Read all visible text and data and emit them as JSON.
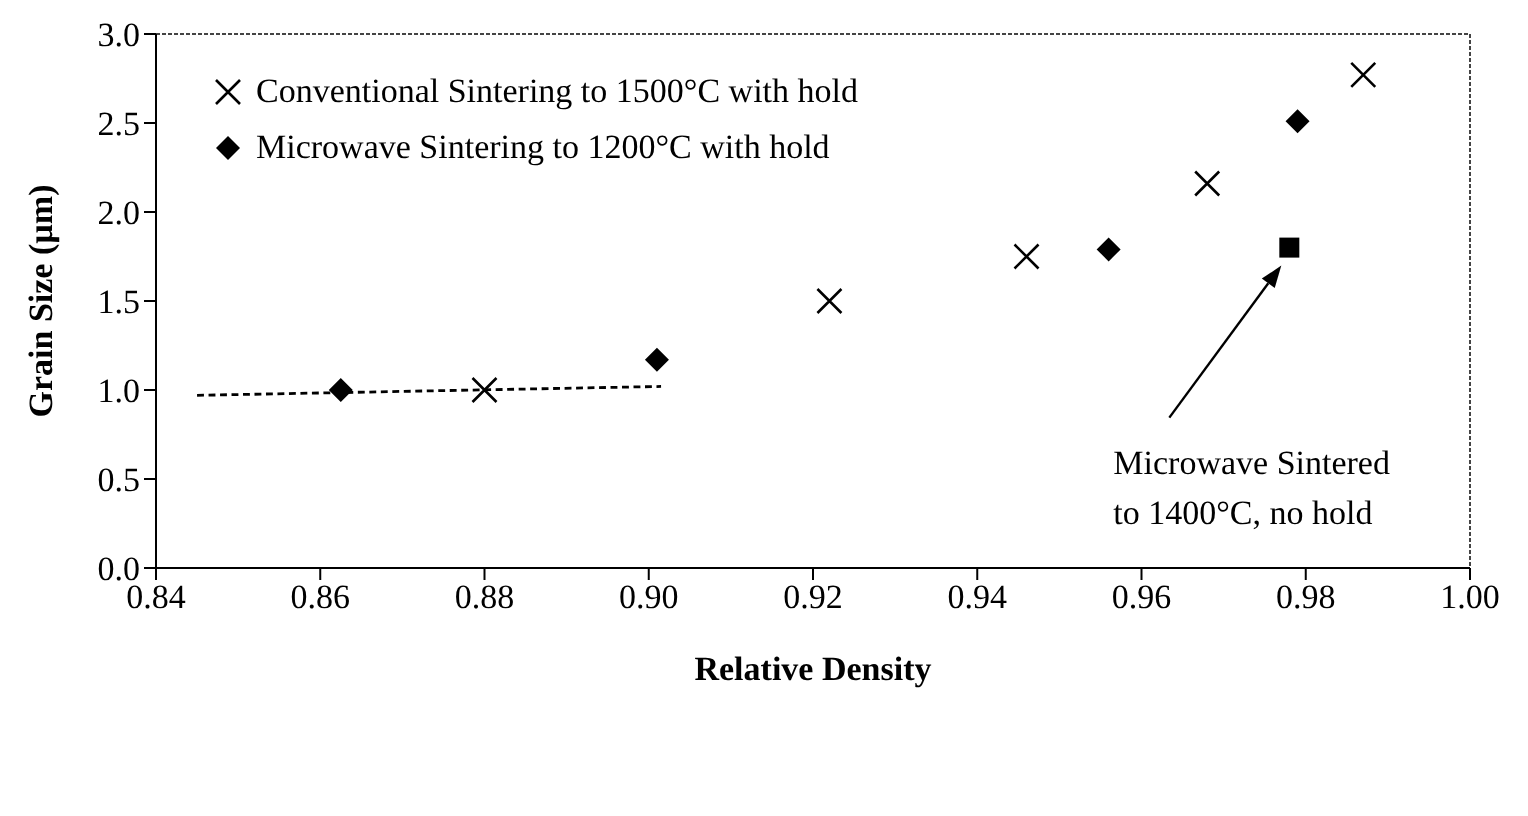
{
  "chart_data": {
    "type": "scatter",
    "xlabel": "Relative Density",
    "ylabel": "Grain Size (µm)",
    "xlim": [
      0.84,
      1.0
    ],
    "xticks": [
      0.84,
      0.86,
      0.88,
      {
        "value": 0.9,
        "label": "0.90"
      },
      0.92,
      0.94,
      0.96,
      0.98,
      {
        "value": 1.0,
        "label": "1.00"
      }
    ],
    "ylim": [
      0,
      3
    ],
    "yticks": [
      {
        "value": 0,
        "label": "0.0"
      },
      0.5,
      {
        "value": 1,
        "label": "1.0"
      },
      1.5,
      {
        "value": 2,
        "label": "2.0"
      },
      2.5,
      {
        "value": 3,
        "label": "3.0"
      }
    ],
    "legend": "top left",
    "series": [
      {
        "name": "Conventional Sintering to 1500°C with hold",
        "color": "#000000",
        "marker": "cross",
        "x": [
          0.88,
          0.922,
          0.946,
          0.968,
          0.987
        ],
        "values": [
          1.0,
          1.5,
          1.75,
          2.16,
          2.77
        ]
      },
      {
        "name": "Microwave Sintering to 1200°C with hold",
        "color": "#000000",
        "marker": "diamond",
        "x": [
          0.8625,
          0.901,
          0.956,
          0.979
        ],
        "values": [
          1.0,
          1.17,
          1.79,
          2.51
        ]
      },
      {
        "color": "#000000",
        "marker": "square",
        "x": [
          0.978
        ],
        "values": [
          1.8
        ]
      },
      {
        "type": "line",
        "color": "#000000",
        "marker": "none",
        "line_style": "dashed",
        "x": [
          0.845,
          0.9015
        ],
        "values": [
          0.97,
          1.02
        ]
      }
    ],
    "annotations": [
      "Microwave Sintered\nto 1400°C, no hold"
    ]
  }
}
